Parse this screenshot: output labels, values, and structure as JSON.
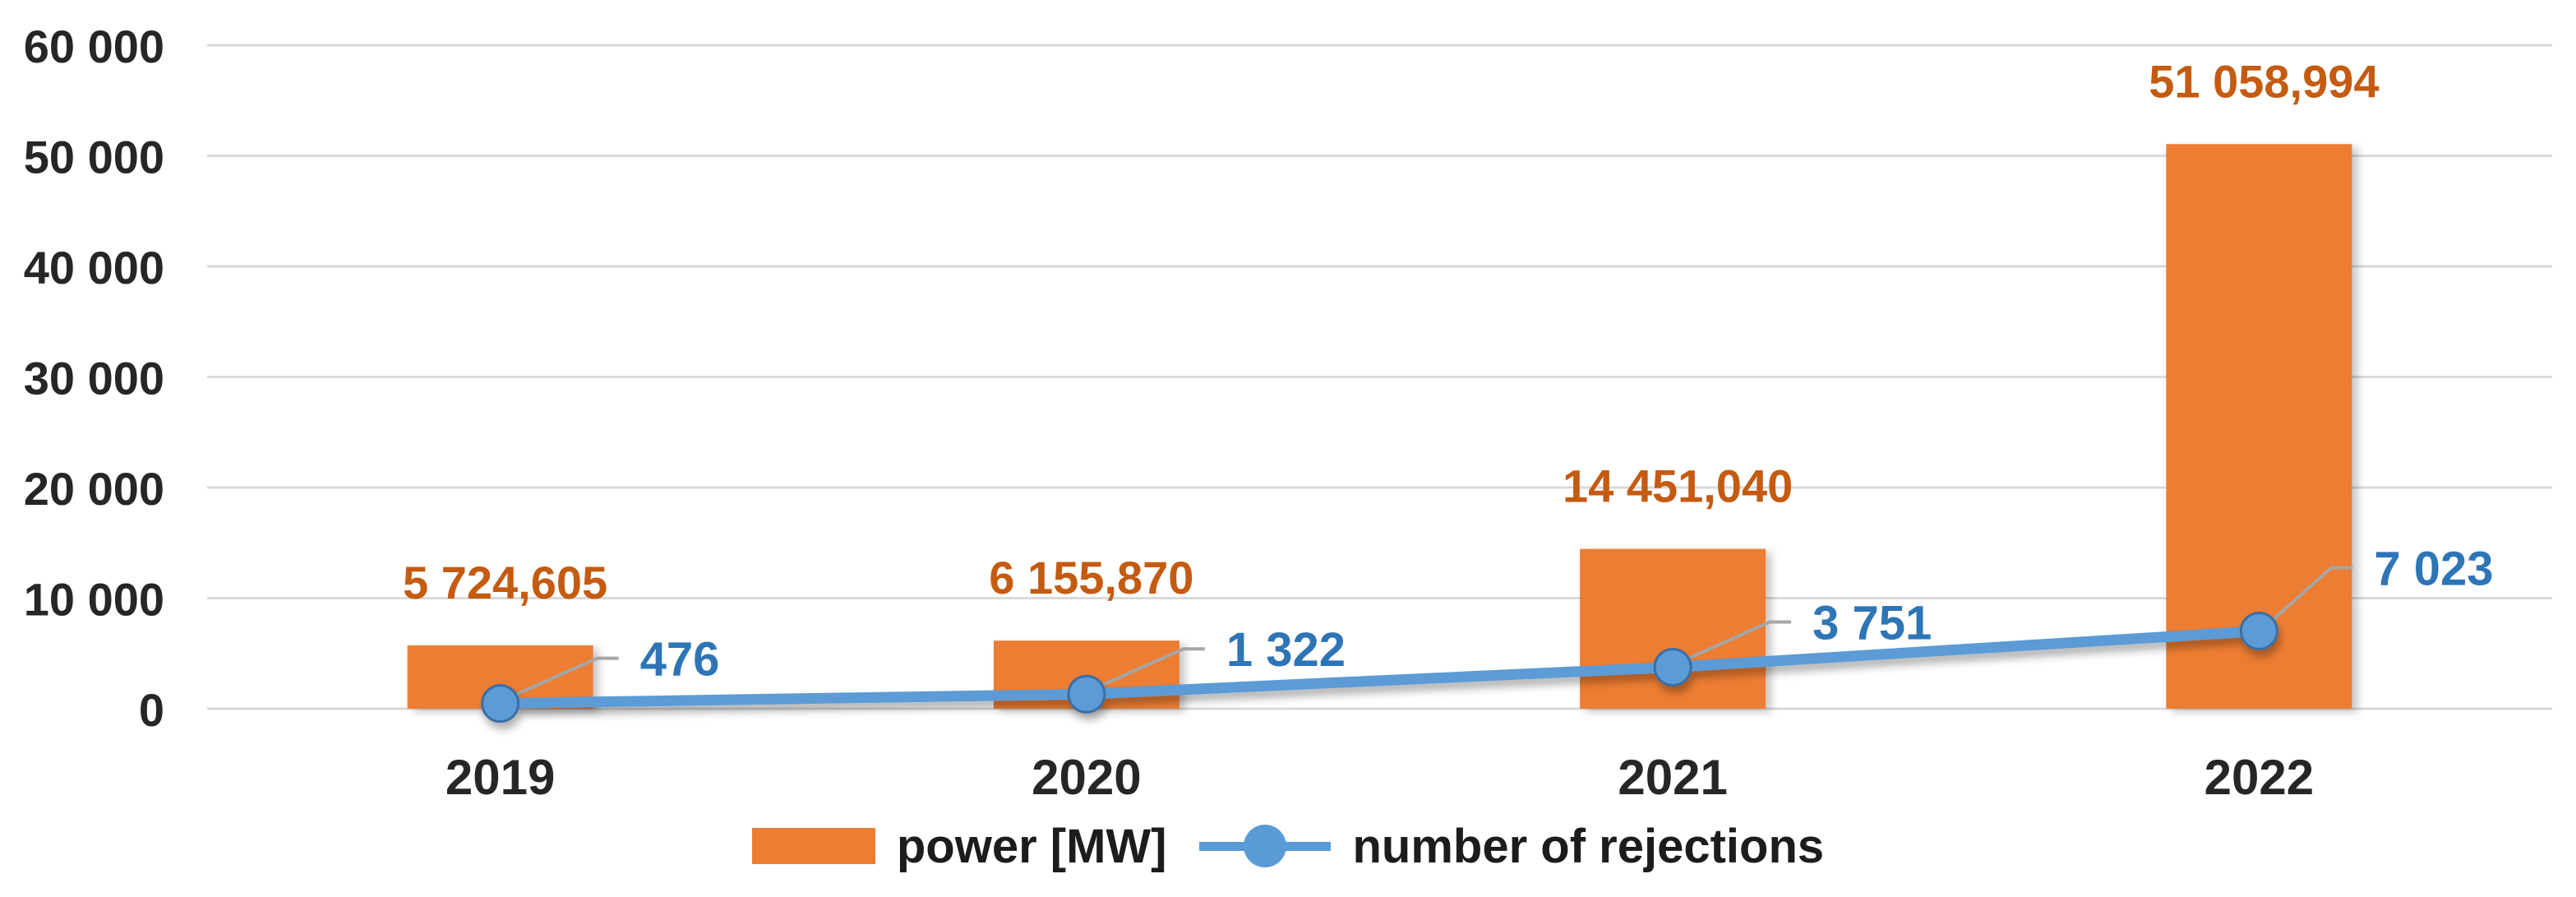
{
  "chart_data": {
    "type": "bar",
    "subtype": "combo-bar-line",
    "title": "",
    "xlabel": "",
    "ylabel": "",
    "categories": [
      "2019",
      "2020",
      "2021",
      "2022"
    ],
    "series": [
      {
        "name": "power [MW]",
        "type": "bar",
        "color": "#ED7D31",
        "label_color": "#C55A11",
        "values": [
          5724.605,
          6155.87,
          14451.04,
          51058.994
        ],
        "labels": [
          "5 724,605",
          "6 155,870",
          "14 451,040",
          "51 058,994"
        ]
      },
      {
        "name": "number of rejections",
        "type": "line",
        "color": "#5B9BD5",
        "marker_stroke": "#3A6EA5",
        "label_color": "#2E75B6",
        "values": [
          476,
          1322,
          3751,
          7023
        ],
        "labels": [
          "476",
          "1 322",
          "3 751",
          "7 023"
        ]
      }
    ],
    "ylim": [
      0,
      60000
    ],
    "y_ticks": [
      {
        "value": 0,
        "label": "0"
      },
      {
        "value": 10000,
        "label": "10 000"
      },
      {
        "value": 20000,
        "label": "20 000"
      },
      {
        "value": 30000,
        "label": "30 000"
      },
      {
        "value": 40000,
        "label": "40 000"
      },
      {
        "value": 50000,
        "label": "50 000"
      },
      {
        "value": 60000,
        "label": "60 000"
      }
    ],
    "grid": "horizontal",
    "gridline_color": "#D9D9D9",
    "leader_line_color": "#A6A6A6",
    "axis_text_color": "#262626",
    "legend_position": "bottom"
  }
}
